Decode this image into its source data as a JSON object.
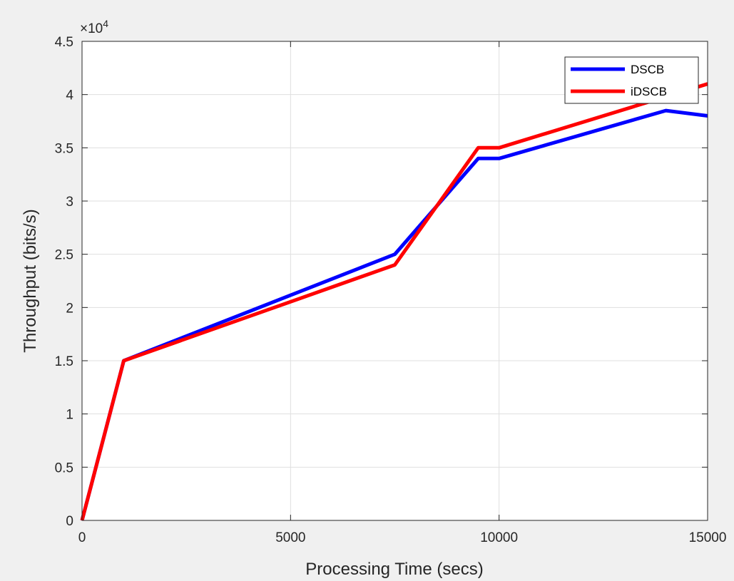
{
  "chart_data": {
    "type": "line",
    "xlabel": "Processing Time (secs)",
    "ylabel": "Throughput (bits/s)",
    "y_exponent_label": "×10",
    "y_exponent_power": "4",
    "xlim": [
      0,
      15000
    ],
    "ylim": [
      0,
      45000
    ],
    "x_ticks": [
      0,
      5000,
      10000,
      15000
    ],
    "x_tick_labels": [
      "0",
      "5000",
      "10000",
      "15000"
    ],
    "y_ticks": [
      0,
      5000,
      10000,
      15000,
      20000,
      25000,
      30000,
      35000,
      40000,
      45000
    ],
    "y_tick_labels": [
      "0",
      "0.5",
      "1",
      "1.5",
      "2",
      "2.5",
      "3",
      "3.5",
      "4",
      "4.5"
    ],
    "grid": true,
    "legend_position": "top-right",
    "series": [
      {
        "name": "DSCB",
        "color": "#0000ff",
        "x": [
          0,
          1000,
          7500,
          9500,
          10000,
          14000,
          15000
        ],
        "y": [
          0,
          15000,
          25000,
          34000,
          34000,
          38500,
          38000
        ]
      },
      {
        "name": "iDSCB",
        "color": "#ff0000",
        "x": [
          0,
          1000,
          7500,
          9500,
          10000,
          15000
        ],
        "y": [
          0,
          15000,
          24000,
          35000,
          35000,
          41000
        ]
      }
    ]
  }
}
